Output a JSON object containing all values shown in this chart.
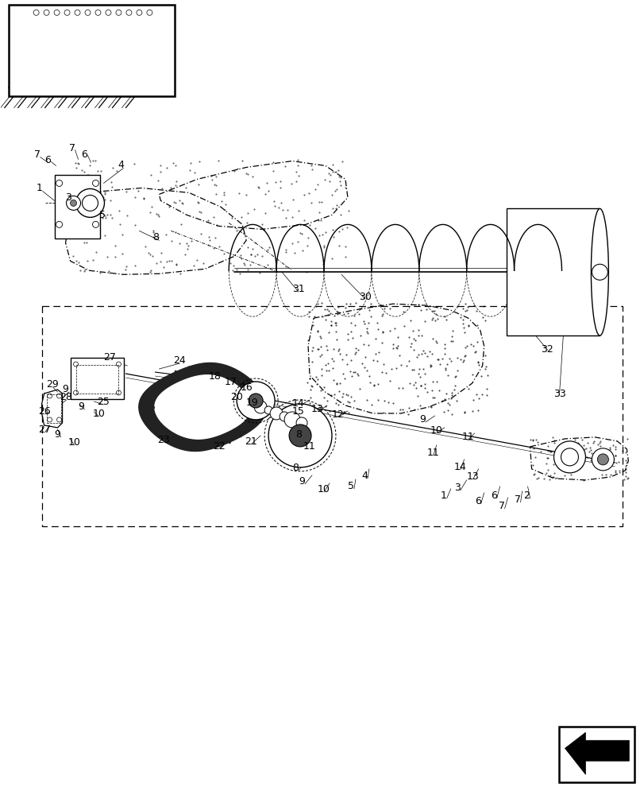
{
  "background_color": "#ffffff",
  "line_color": "#000000",
  "fig_width": 8.12,
  "fig_height": 10.0,
  "dpi": 100
}
